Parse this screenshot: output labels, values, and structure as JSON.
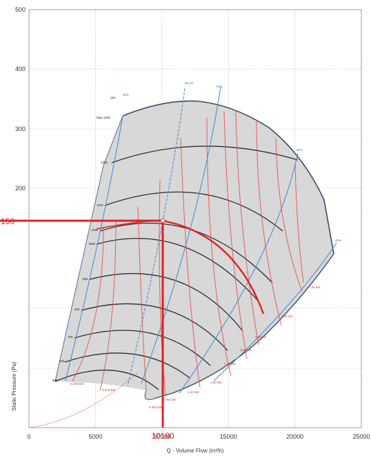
{
  "chart_data": {
    "type": "line",
    "xlabel": "Q - Volume Flow (m³/h)",
    "ylabel": "Static Pressure (Pa)",
    "xlim": [
      0,
      25000
    ],
    "x_ticks": [
      "0",
      "5000",
      "10000",
      "15000",
      "20000",
      "25000"
    ],
    "y_ticks": [
      "500",
      "400",
      "300",
      "200"
    ],
    "grid": true,
    "legend": "none",
    "operating_point": {
      "x": 10100,
      "y": 150,
      "x_label": "10100",
      "y_label": "150"
    },
    "speed_header": "rpm",
    "speed_labels": [
      "Max 1330",
      "1200",
      "1100",
      "1036",
      "1000",
      "900",
      "800",
      "700",
      "600",
      "500"
    ],
    "efficiency_labels": [
      "50%",
      "66.3%",
      "60%",
      "50%",
      "40%"
    ],
    "power_labels": [
      "0.200 kW",
      "0.370 kW",
      "0.560 kW",
      "0.750 kW",
      "1.10 kW",
      "1.50 kW",
      "2.20 kW",
      "3.00 kW",
      "4.00 kW",
      "5.50 kW",
      "7.50 kW"
    ],
    "colors": {
      "envelope_fill": "#d8d8d8",
      "envelope_line": "#3c4a66",
      "speed_curve": "#2b2b2b",
      "efficiency_line": "#4a8fd4",
      "power_line": "#e04a4a",
      "highlight": "#e02020",
      "grid": "#b0b0b0"
    }
  }
}
